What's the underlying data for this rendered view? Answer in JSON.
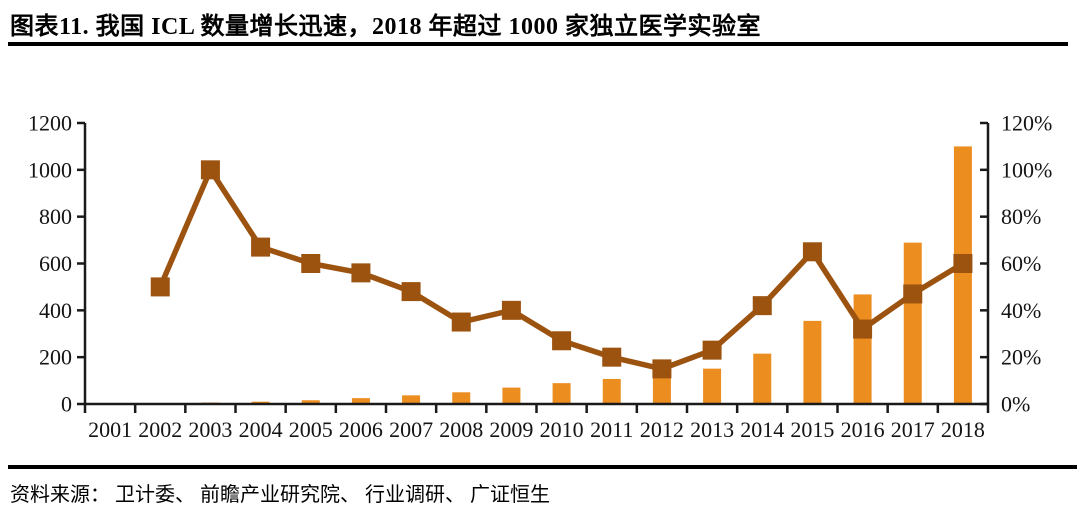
{
  "figure": {
    "title": "图表11.  我国 ICL 数量增长迅速，2018 年超过 1000 家独立医学实验室",
    "source": "资料来源： 卫计委、 前瞻产业研究院、 行业调研、 广证恒生"
  },
  "colors": {
    "bar": "#EC8D1F",
    "line": "#9C5310",
    "axis": "#1a1a1a",
    "text": "#141414",
    "rule": "#000000"
  },
  "chart_data": {
    "type": "combo-bar-line",
    "categories": [
      "2001",
      "2002",
      "2003",
      "2004",
      "2005",
      "2006",
      "2007",
      "2008",
      "2009",
      "2010",
      "2011",
      "2012",
      "2013",
      "2014",
      "2015",
      "2016",
      "2017",
      "2018"
    ],
    "series": [
      {
        "name": "ICL count (orange bars, left axis)",
        "type": "bar",
        "axis": "left",
        "values": [
          2,
          3,
          6,
          10,
          16,
          25,
          37,
          50,
          70,
          89,
          107,
          123,
          151,
          215,
          355,
          468,
          689,
          1100
        ]
      },
      {
        "name": "YoY growth rate (brown line with square markers, right axis)",
        "type": "line",
        "axis": "right",
        "values": [
          null,
          50,
          100,
          67,
          60,
          56,
          48,
          35,
          40,
          27,
          20,
          15,
          23,
          42,
          65,
          32,
          47,
          60
        ]
      }
    ],
    "left_axis": {
      "min": 0,
      "max": 1200,
      "step": 200,
      "tick_labels": [
        "0",
        "200",
        "400",
        "600",
        "800",
        "1000",
        "1200"
      ]
    },
    "right_axis": {
      "min": 0,
      "max": 120,
      "step": 20,
      "tick_labels": [
        "0%",
        "20%",
        "40%",
        "60%",
        "80%",
        "100%",
        "120%"
      ]
    },
    "grid": false,
    "legend": null
  }
}
